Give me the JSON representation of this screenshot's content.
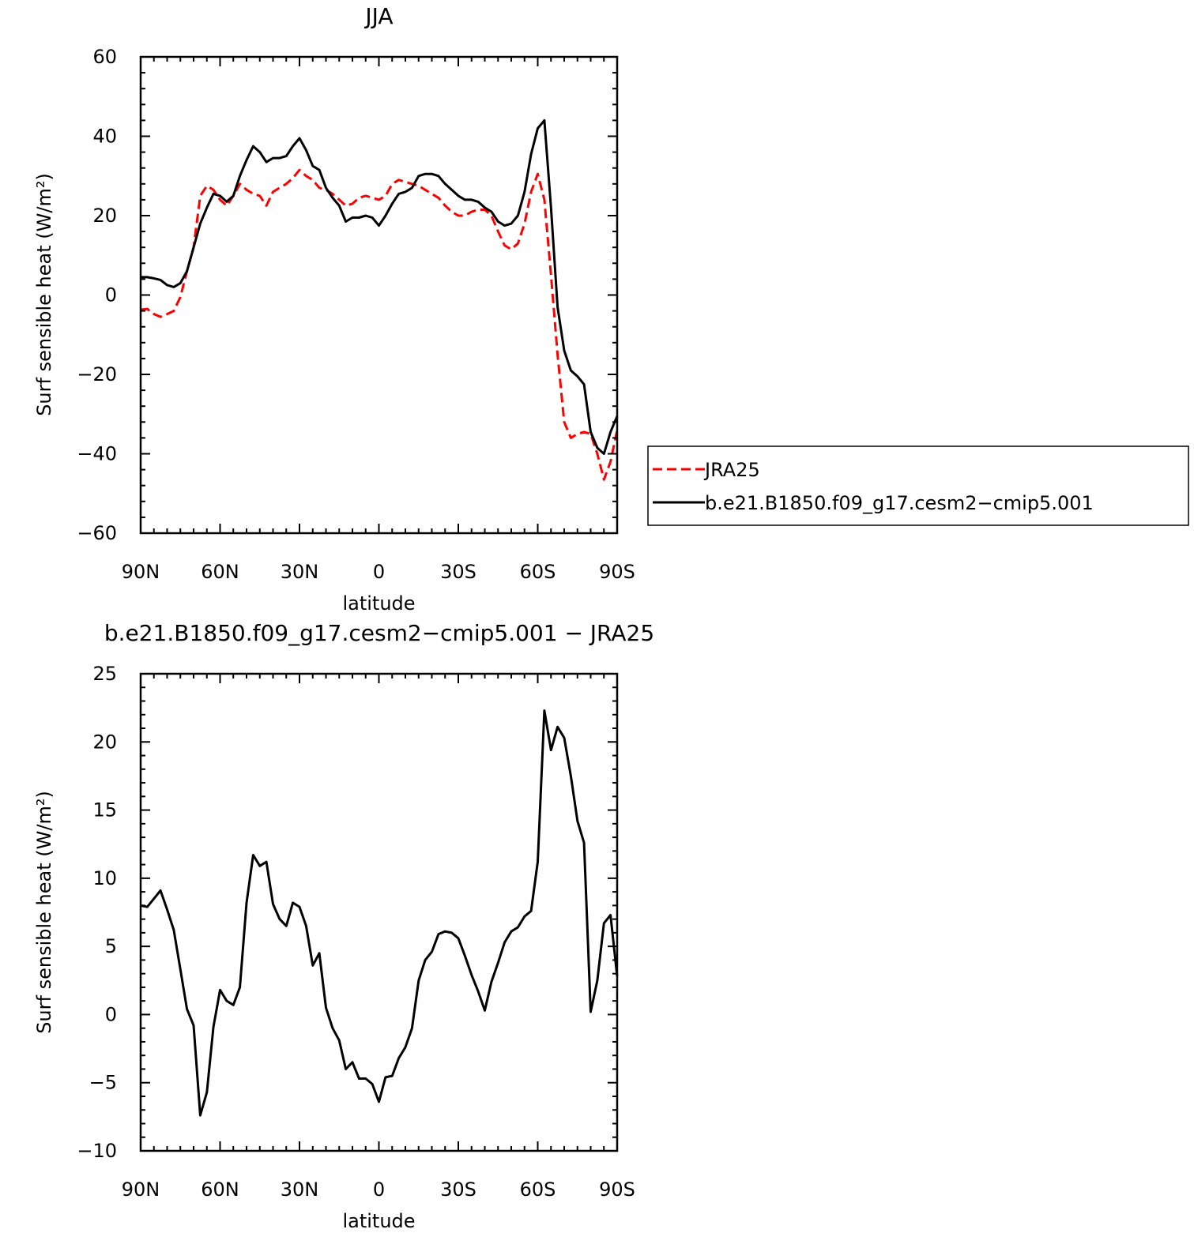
{
  "chart_data": [
    {
      "type": "line",
      "title": "JJA",
      "xlabel": "latitude",
      "ylabel": "Surf sensible heat (W/m²)",
      "xlim": [
        90,
        -90
      ],
      "ylim": [
        -60,
        60
      ],
      "x_ticks": [
        {
          "value": 90,
          "label": "90N"
        },
        {
          "value": 60,
          "label": "60N"
        },
        {
          "value": 30,
          "label": "30N"
        },
        {
          "value": 0,
          "label": "0"
        },
        {
          "value": -30,
          "label": "30S"
        },
        {
          "value": -60,
          "label": "60S"
        },
        {
          "value": -90,
          "label": "90S"
        }
      ],
      "y_ticks": [
        {
          "value": 60,
          "label": "60"
        },
        {
          "value": 40,
          "label": "40"
        },
        {
          "value": 20,
          "label": "20"
        },
        {
          "value": 0,
          "label": "0"
        },
        {
          "value": -20,
          "label": "−20"
        },
        {
          "value": -40,
          "label": "−40"
        },
        {
          "value": -60,
          "label": "−60"
        }
      ],
      "legend": "right",
      "series": [
        {
          "name": "JRA25",
          "color": "#ff0000",
          "dash": "dashed",
          "points": [
            [
              90,
              -3.7
            ],
            [
              87.5,
              -3.5
            ],
            [
              85,
              -4.8
            ],
            [
              82.5,
              -5.5
            ],
            [
              80,
              -4.8
            ],
            [
              77.5,
              -4
            ],
            [
              75,
              -0.5
            ],
            [
              72.5,
              6
            ],
            [
              70,
              12
            ],
            [
              67.5,
              25
            ],
            [
              65,
              27.5
            ],
            [
              62.5,
              26.5
            ],
            [
              60,
              24
            ],
            [
              57.5,
              22.5
            ],
            [
              55,
              25
            ],
            [
              52.5,
              28
            ],
            [
              50,
              26.5
            ],
            [
              47.5,
              25.5
            ],
            [
              45,
              25
            ],
            [
              42.5,
              22.5
            ],
            [
              40,
              26
            ],
            [
              37.5,
              27
            ],
            [
              35,
              28
            ],
            [
              32.5,
              29.5
            ],
            [
              30,
              31.5
            ],
            [
              27.5,
              30
            ],
            [
              25,
              29
            ],
            [
              22.5,
              27
            ],
            [
              20,
              26.5
            ],
            [
              17.5,
              25.5
            ],
            [
              15,
              24
            ],
            [
              12.5,
              22.5
            ],
            [
              10,
              23
            ],
            [
              7.5,
              24.5
            ],
            [
              5,
              25
            ],
            [
              2.5,
              24.5
            ],
            [
              0,
              24
            ],
            [
              -2.5,
              25
            ],
            [
              -5,
              28
            ],
            [
              -7.5,
              29
            ],
            [
              -10,
              28.5
            ],
            [
              -12.5,
              28
            ],
            [
              -15,
              27.5
            ],
            [
              -17.5,
              26.5
            ],
            [
              -20,
              25.5
            ],
            [
              -22.5,
              24.5
            ],
            [
              -25,
              22.5
            ],
            [
              -27.5,
              21
            ],
            [
              -30,
              20
            ],
            [
              -32.5,
              20
            ],
            [
              -35,
              21
            ],
            [
              -37.5,
              21.5
            ],
            [
              -40,
              21.5
            ],
            [
              -42.5,
              20
            ],
            [
              -45,
              16
            ],
            [
              -47.5,
              12.5
            ],
            [
              -50,
              11.5
            ],
            [
              -52.5,
              13
            ],
            [
              -55,
              18
            ],
            [
              -57.5,
              26
            ],
            [
              -60,
              30.5
            ],
            [
              -62.5,
              24
            ],
            [
              -65,
              5
            ],
            [
              -67.5,
              -15
            ],
            [
              -70,
              -32
            ],
            [
              -72.5,
              -36
            ],
            [
              -75,
              -35
            ],
            [
              -77.5,
              -34.5
            ],
            [
              -80,
              -35
            ],
            [
              -82.5,
              -40
            ],
            [
              -85,
              -46.5
            ],
            [
              -87.5,
              -42
            ],
            [
              -90,
              -34
            ]
          ]
        },
        {
          "name": "b.e21.B1850.f09_g17.cesm2−cmip5.001",
          "color": "#000000",
          "dash": "solid",
          "points": [
            [
              90,
              4.5
            ],
            [
              87.5,
              4.5
            ],
            [
              85,
              4.2
            ],
            [
              82.5,
              3.8
            ],
            [
              80,
              2.5
            ],
            [
              77.5,
              2
            ],
            [
              75,
              3
            ],
            [
              72.5,
              6
            ],
            [
              70,
              12
            ],
            [
              67.5,
              18
            ],
            [
              65,
              22
            ],
            [
              62.5,
              25.5
            ],
            [
              60,
              25
            ],
            [
              57.5,
              23.5
            ],
            [
              55,
              25
            ],
            [
              52.5,
              30
            ],
            [
              50,
              34
            ],
            [
              47.5,
              37.5
            ],
            [
              45,
              36
            ],
            [
              42.5,
              33.5
            ],
            [
              40,
              34.5
            ],
            [
              37.5,
              34.5
            ],
            [
              35,
              35
            ],
            [
              32.5,
              37.5
            ],
            [
              30,
              39.5
            ],
            [
              27.5,
              36.5
            ],
            [
              25,
              32.5
            ],
            [
              22.5,
              31.5
            ],
            [
              20,
              27
            ],
            [
              17.5,
              24.5
            ],
            [
              15,
              22.5
            ],
            [
              12.5,
              18.5
            ],
            [
              10,
              19.5
            ],
            [
              7.5,
              19.5
            ],
            [
              5,
              20
            ],
            [
              2.5,
              19.5
            ],
            [
              0,
              17.5
            ],
            [
              -2.5,
              20
            ],
            [
              -5,
              23
            ],
            [
              -7.5,
              25.5
            ],
            [
              -10,
              26
            ],
            [
              -12.5,
              27
            ],
            [
              -15,
              30
            ],
            [
              -17.5,
              30.5
            ],
            [
              -20,
              30.5
            ],
            [
              -22.5,
              30
            ],
            [
              -25,
              28
            ],
            [
              -27.5,
              26.5
            ],
            [
              -30,
              25
            ],
            [
              -32.5,
              24
            ],
            [
              -35,
              24
            ],
            [
              -37.5,
              23.5
            ],
            [
              -40,
              22
            ],
            [
              -42.5,
              21
            ],
            [
              -45,
              18.5
            ],
            [
              -47.5,
              17.5
            ],
            [
              -50,
              18
            ],
            [
              -52.5,
              20
            ],
            [
              -55,
              26
            ],
            [
              -57.5,
              35.5
            ],
            [
              -60,
              42
            ],
            [
              -62.5,
              44
            ],
            [
              -65,
              22
            ],
            [
              -67.5,
              -3
            ],
            [
              -70,
              -14
            ],
            [
              -72.5,
              -19
            ],
            [
              -75,
              -20.5
            ],
            [
              -77.5,
              -22.5
            ],
            [
              -80,
              -34.5
            ],
            [
              -82.5,
              -38.5
            ],
            [
              -85,
              -40
            ],
            [
              -87.5,
              -34.5
            ],
            [
              -90,
              -30.5
            ]
          ]
        }
      ]
    },
    {
      "type": "line",
      "title": "b.e21.B1850.f09_g17.cesm2−cmip5.001  −  JRA25",
      "xlabel": "latitude",
      "ylabel": "Surf sensible heat (W/m²)",
      "xlim": [
        90,
        -90
      ],
      "ylim": [
        -10,
        25
      ],
      "x_ticks": [
        {
          "value": 90,
          "label": "90N"
        },
        {
          "value": 60,
          "label": "60N"
        },
        {
          "value": 30,
          "label": "30N"
        },
        {
          "value": 0,
          "label": "0"
        },
        {
          "value": -30,
          "label": "30S"
        },
        {
          "value": -60,
          "label": "60S"
        },
        {
          "value": -90,
          "label": "90S"
        }
      ],
      "y_ticks": [
        {
          "value": 25,
          "label": "25"
        },
        {
          "value": 20,
          "label": "20"
        },
        {
          "value": 15,
          "label": "15"
        },
        {
          "value": 10,
          "label": "10"
        },
        {
          "value": 5,
          "label": "5"
        },
        {
          "value": 0,
          "label": "0"
        },
        {
          "value": -5,
          "label": "−5"
        },
        {
          "value": -10,
          "label": "−10"
        }
      ],
      "series": [
        {
          "color": "#000000",
          "dash": "solid",
          "points": [
            [
              90,
              8
            ],
            [
              87.5,
              7.9
            ],
            [
              85,
              8.5
            ],
            [
              82.5,
              9.1
            ],
            [
              80,
              7.7
            ],
            [
              77.5,
              6.2
            ],
            [
              75,
              3.3
            ],
            [
              72.5,
              0.4
            ],
            [
              70,
              -0.8
            ],
            [
              67.5,
              -7.4
            ],
            [
              65,
              -5.7
            ],
            [
              62.5,
              -0.9
            ],
            [
              60,
              1.8
            ],
            [
              57.5,
              1
            ],
            [
              55,
              0.7
            ],
            [
              52.5,
              2
            ],
            [
              50,
              8.2
            ],
            [
              47.5,
              11.7
            ],
            [
              45,
              10.9
            ],
            [
              42.5,
              11.2
            ],
            [
              40,
              8.1
            ],
            [
              37.5,
              7
            ],
            [
              35,
              6.5
            ],
            [
              32.5,
              8.2
            ],
            [
              30,
              7.9
            ],
            [
              27.5,
              6.5
            ],
            [
              25,
              3.6
            ],
            [
              22.5,
              4.5
            ],
            [
              20,
              0.5
            ],
            [
              17.5,
              -1
            ],
            [
              15,
              -1.9
            ],
            [
              12.5,
              -4
            ],
            [
              10,
              -3.5
            ],
            [
              7.5,
              -4.7
            ],
            [
              5,
              -4.7
            ],
            [
              2.5,
              -5.1
            ],
            [
              0,
              -6.4
            ],
            [
              -2.5,
              -4.6
            ],
            [
              -5,
              -4.5
            ],
            [
              -7.5,
              -3.2
            ],
            [
              -10,
              -2.4
            ],
            [
              -12.5,
              -1
            ],
            [
              -15,
              2.5
            ],
            [
              -17.5,
              4
            ],
            [
              -20,
              4.6
            ],
            [
              -22.5,
              5.9
            ],
            [
              -25,
              6.1
            ],
            [
              -27.5,
              6
            ],
            [
              -30,
              5.6
            ],
            [
              -32.5,
              4.3
            ],
            [
              -35,
              2.9
            ],
            [
              -37.5,
              1.7
            ],
            [
              -40,
              0.3
            ],
            [
              -42.5,
              2.4
            ],
            [
              -45,
              3.8
            ],
            [
              -47.5,
              5.3
            ],
            [
              -50,
              6.1
            ],
            [
              -52.5,
              6.4
            ],
            [
              -55,
              7.2
            ],
            [
              -57.5,
              7.6
            ],
            [
              -60,
              11.2
            ],
            [
              -62.5,
              22.3
            ],
            [
              -65,
              19.4
            ],
            [
              -67.5,
              21.1
            ],
            [
              -70,
              20.3
            ],
            [
              -72.5,
              17.5
            ],
            [
              -75,
              14.2
            ],
            [
              -77.5,
              12.6
            ],
            [
              -80,
              0.2
            ],
            [
              -82.5,
              2.5
            ],
            [
              -85,
              6.7
            ],
            [
              -87.5,
              7.3
            ],
            [
              -90,
              2.8
            ]
          ]
        }
      ]
    }
  ]
}
